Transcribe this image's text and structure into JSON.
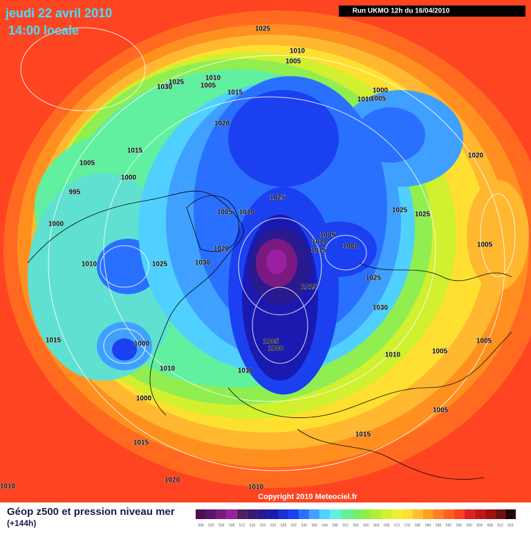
{
  "header": {
    "date": "jeudi 22 avril 2010",
    "time": "14:00 locale",
    "run": "Run UKMO 12h du 16/04/2010"
  },
  "isobar_labels": [
    "1025",
    "1010",
    "1005",
    "1030",
    "1025",
    "1010",
    "1005",
    "1015",
    "1000",
    "1010",
    "1005",
    "1020",
    "1015",
    "1005",
    "1000",
    "1020",
    "995",
    "1025",
    "1000",
    "1005",
    "1010",
    "1025",
    "1025",
    "1005",
    "1010",
    "1000",
    "1015",
    "1020",
    "1005",
    "1010",
    "1025",
    "1030",
    "1025",
    "1015",
    "1030",
    "1015",
    "1000",
    "1005",
    "1000",
    "1005",
    "1010",
    "1005",
    "1010",
    "1010",
    "1000",
    "1005",
    "1015",
    "1015",
    "1020",
    "1010",
    "1010"
  ],
  "footer": {
    "copyright": "Copyright 2010 Meteociel.fr",
    "title": "Géop z500 et pression niveau mer",
    "lead": "(+144h)"
  },
  "color_scale": [
    496,
    500,
    504,
    508,
    512,
    516,
    520,
    524,
    528,
    532,
    536,
    540,
    544,
    548,
    552,
    556,
    560,
    564,
    568,
    572,
    576,
    580,
    584,
    588,
    592,
    596,
    600,
    604,
    608,
    612,
    616
  ]
}
